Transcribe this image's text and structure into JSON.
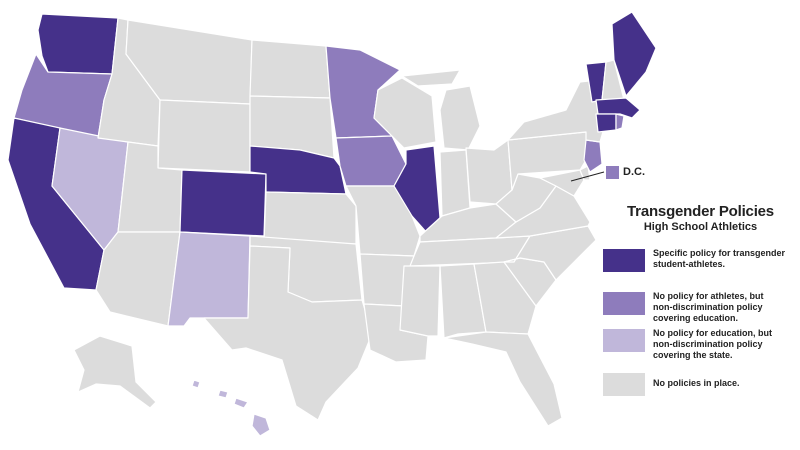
{
  "map": {
    "legend": {
      "title": "Transgender Policies",
      "subtitle": "High School Athletics",
      "items": [
        {
          "key": "specific",
          "color": "#45318a",
          "label": "Specific policy for transgender\nstudent-athletes."
        },
        {
          "key": "education",
          "color": "#8e7cbc",
          "label": "No policy for athletes, but\nnon-discrimination policy\ncovering education."
        },
        {
          "key": "state",
          "color": "#c0b7da",
          "label": "No policy for education, but\nnon-discrimination policy\ncovering the state."
        },
        {
          "key": "none",
          "color": "#dcdcdc",
          "label": "No policies in place."
        }
      ]
    },
    "dc_label": "D.C.",
    "categories": {
      "specific": [
        "WA",
        "CA",
        "CO",
        "NE",
        "IL",
        "ME",
        "VT",
        "CT",
        "MA"
      ],
      "education": [
        "OR",
        "MN",
        "IA",
        "NJ",
        "RI",
        "DC"
      ],
      "state": [
        "NV",
        "NM",
        "HI"
      ],
      "none": [
        "ID",
        "MT",
        "WY",
        "UT",
        "AZ",
        "ND",
        "SD",
        "KS",
        "OK",
        "TX",
        "MO",
        "AR",
        "LA",
        "WI",
        "MI",
        "IN",
        "OH",
        "KY",
        "TN",
        "MS",
        "AL",
        "GA",
        "FL",
        "SC",
        "NC",
        "VA",
        "WV",
        "PA",
        "NY",
        "NH",
        "MD",
        "DE",
        "AK"
      ]
    }
  }
}
